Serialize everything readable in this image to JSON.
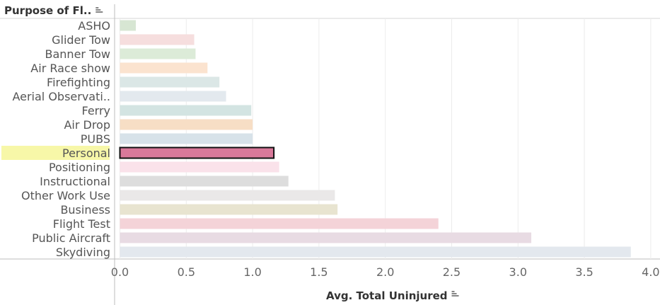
{
  "header": {
    "column_title": "Purpose of Fl..",
    "sort_icon": "sort-descending-icon"
  },
  "chart_data": {
    "type": "bar",
    "orientation": "horizontal",
    "categories": [
      "ASHO",
      "Glider Tow",
      "Banner Tow",
      "Air Race show",
      "Firefighting",
      "Aerial Observati..",
      "Ferry",
      "Air Drop",
      "PUBS",
      "Personal",
      "Positioning",
      "Instructional",
      "Other Work Use",
      "Business",
      "Flight Test",
      "Public Aircraft",
      "Skydiving"
    ],
    "values": [
      0.12,
      0.56,
      0.57,
      0.66,
      0.75,
      0.8,
      0.99,
      1.0,
      1.0,
      1.16,
      1.2,
      1.27,
      1.62,
      1.64,
      2.4,
      3.1,
      3.85
    ],
    "colors": [
      "#d7e6d3",
      "#f6dede",
      "#dcebd8",
      "#fbe3cf",
      "#dbe7e6",
      "#e3e9ee",
      "#d3e4e2",
      "#f7dec5",
      "#d7e2e9",
      "#d9799a",
      "#fae2ea",
      "#dddddd",
      "#eae8e8",
      "#e8e4d0",
      "#f4d3d8",
      "#e8dbe3",
      "#e3e8ee"
    ],
    "highlighted_category": "Personal",
    "highlight_color": "#f7f7a8",
    "xlabel": "Avg. Total Uninjured",
    "xticks": [
      0.0,
      0.5,
      1.0,
      1.5,
      2.0,
      2.5,
      3.0,
      3.5,
      4.0
    ],
    "xtick_labels": [
      "0.0",
      "0.5",
      "1.0",
      "1.5",
      "2.0",
      "2.5",
      "3.0",
      "3.5",
      "4.0"
    ],
    "xlim": [
      -0.04,
      4.07
    ],
    "grid": true,
    "x_sort_icon": "sort-descending-icon"
  }
}
